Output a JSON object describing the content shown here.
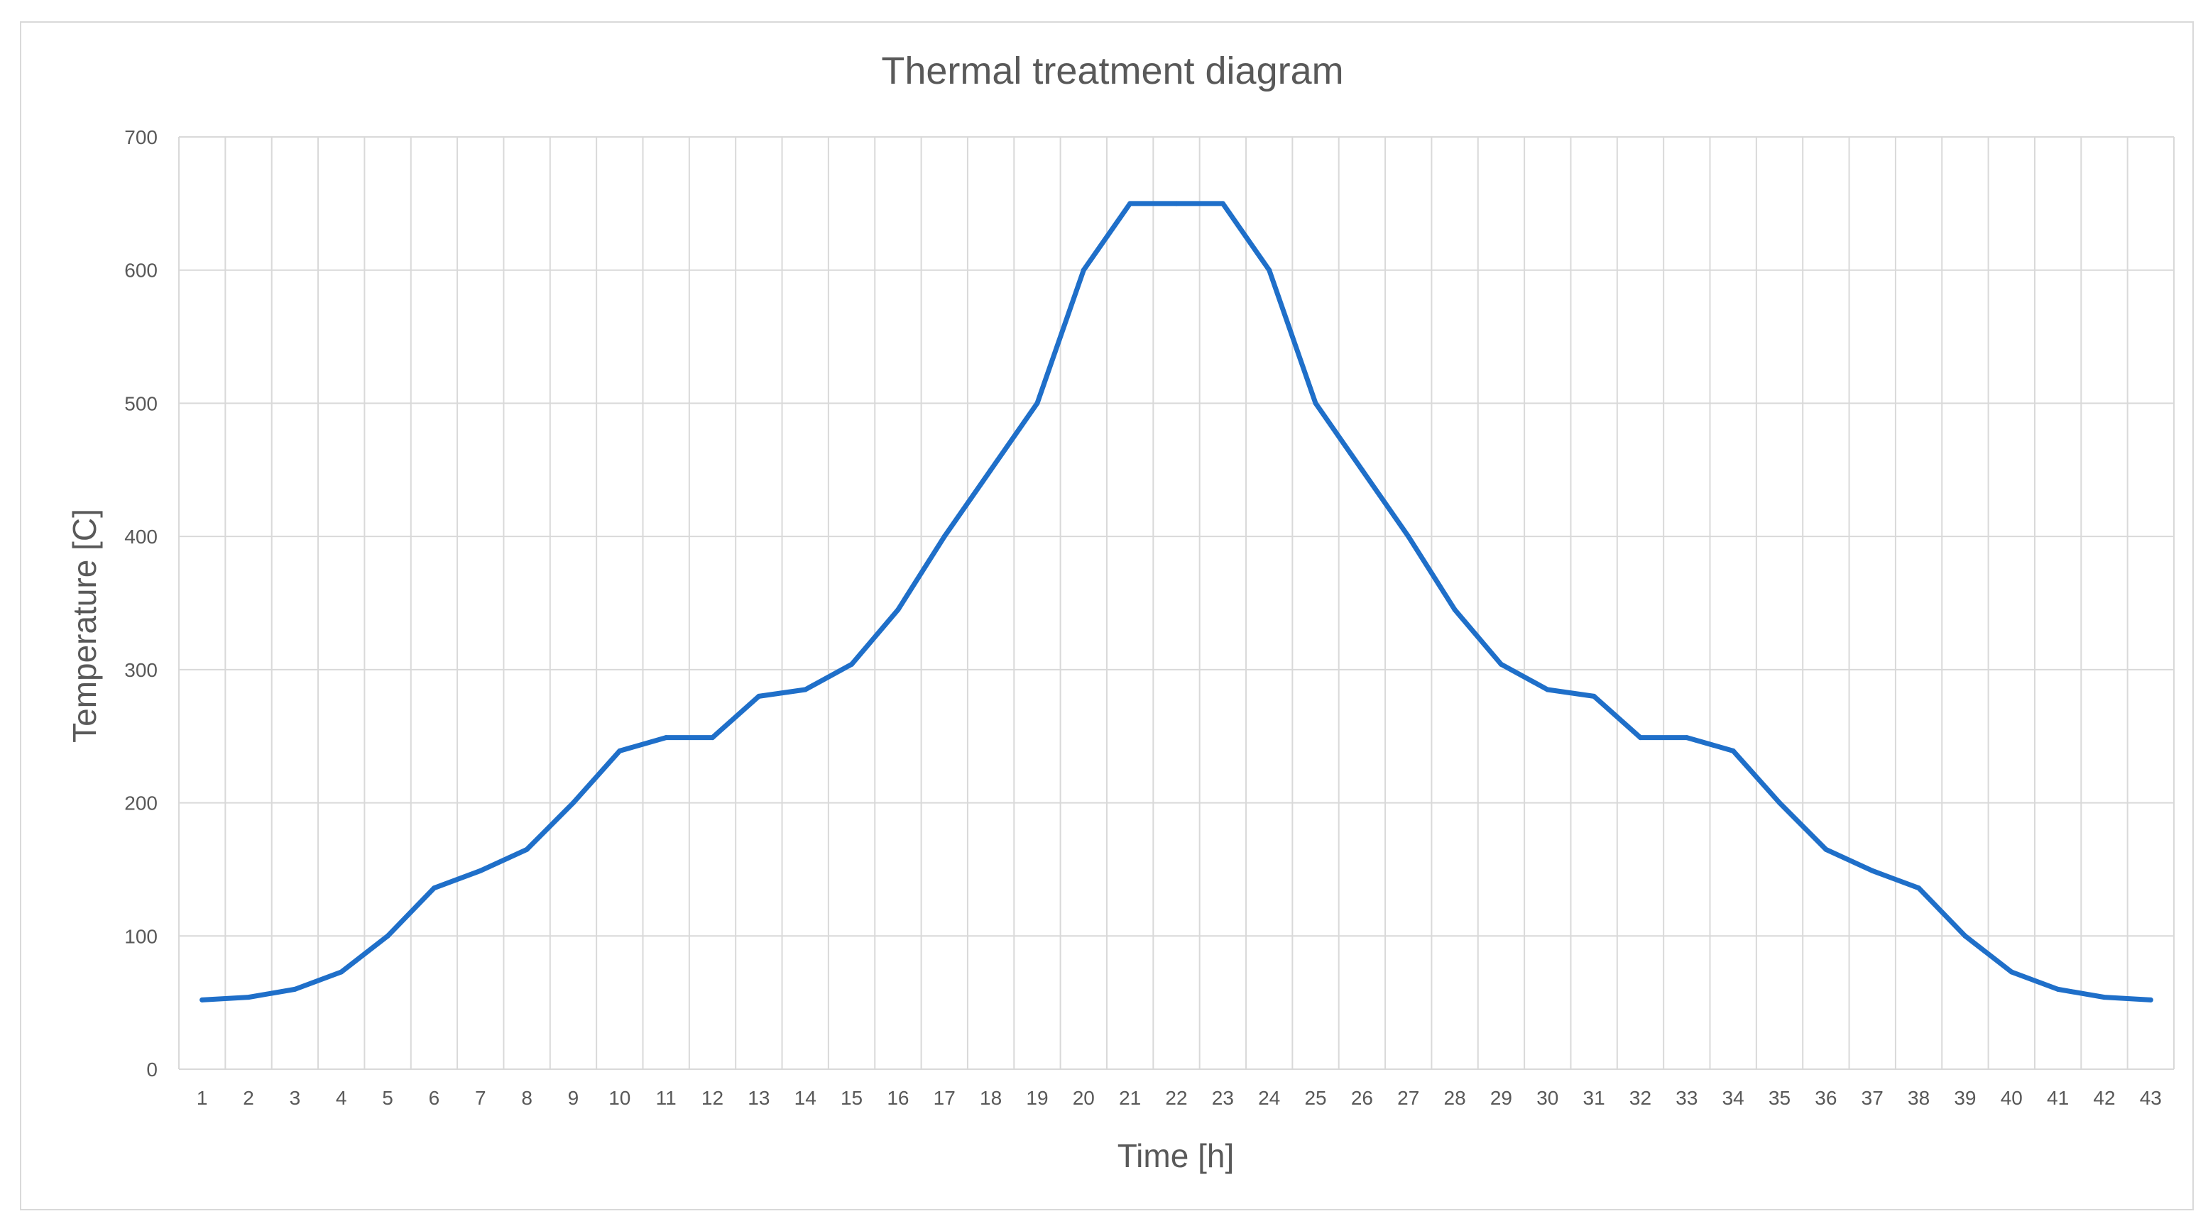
{
  "chart_data": {
    "type": "line",
    "title": "Thermal treatment diagram",
    "xlabel": "Time [h]",
    "ylabel": "Temperature [C]",
    "categories": [
      "1",
      "2",
      "3",
      "4",
      "5",
      "6",
      "7",
      "8",
      "9",
      "10",
      "11",
      "12",
      "13",
      "14",
      "15",
      "16",
      "17",
      "18",
      "19",
      "20",
      "21",
      "22",
      "23",
      "24",
      "25",
      "26",
      "27",
      "28",
      "29",
      "30",
      "31",
      "32",
      "33",
      "34",
      "35",
      "36",
      "37",
      "38",
      "39",
      "40",
      "41",
      "42",
      "43"
    ],
    "series": [
      {
        "values": [
          52,
          54,
          60,
          73,
          100,
          136,
          149,
          165,
          200,
          239,
          249,
          249,
          280,
          285,
          304,
          345,
          400,
          450,
          500,
          600,
          650,
          650,
          650,
          600,
          500,
          450,
          400,
          345,
          304,
          285,
          280,
          249,
          249,
          239,
          200,
          165,
          149,
          136,
          100,
          73,
          60,
          54,
          52
        ],
        "color": "#1f6fc9"
      }
    ],
    "ylim": [
      0,
      700
    ],
    "yticks": [
      0,
      100,
      200,
      300,
      400,
      500,
      600,
      700
    ],
    "grid": true,
    "legend": "none",
    "colors": {
      "line": "#1f6fc9",
      "grid": "#d9d9d9",
      "text": "#595959",
      "border": "#d9d9d9"
    }
  }
}
